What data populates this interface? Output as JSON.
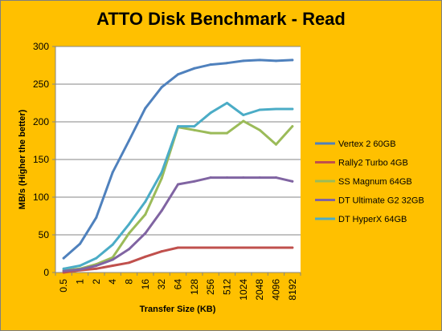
{
  "chart_data": {
    "type": "line",
    "title": "ATTO Disk Benchmark - Read",
    "xlabel": "Transfer Size (KB)",
    "ylabel": "MB/s (Higher the better)",
    "ylim": [
      0,
      300
    ],
    "yticks": [
      0,
      50,
      100,
      150,
      200,
      250,
      300
    ],
    "grid": true,
    "legend": "right",
    "categories": [
      "0.5",
      "1",
      "2",
      "4",
      "8",
      "16",
      "32",
      "64",
      "128",
      "256",
      "512",
      "1024",
      "2048",
      "4096",
      "8192"
    ],
    "series": [
      {
        "name": "Vertex 2 60GB",
        "color": "#4F81BD",
        "values": [
          19,
          38,
          73,
          133,
          175,
          218,
          246,
          263,
          271,
          276,
          278,
          281,
          282,
          281,
          282
        ]
      },
      {
        "name": "Rally2 Turbo 4GB",
        "color": "#C0504D",
        "values": [
          0,
          3,
          5,
          9,
          13,
          21,
          28,
          33,
          33,
          33,
          33,
          33,
          33,
          33,
          33
        ]
      },
      {
        "name": "SS Magnum  64GB",
        "color": "#9BBB59",
        "values": [
          3,
          5,
          11,
          20,
          52,
          77,
          125,
          193,
          189,
          185,
          185,
          201,
          189,
          170,
          194
        ]
      },
      {
        "name": "DT Ultimate  G2 32GB",
        "color": "#8064A2",
        "values": [
          2,
          4,
          9,
          17,
          31,
          52,
          82,
          117,
          121,
          126,
          126,
          126,
          126,
          126,
          121
        ]
      },
      {
        "name": "DT HyperX 64GB",
        "color": "#4BACC6",
        "values": [
          5,
          9,
          19,
          37,
          64,
          94,
          133,
          194,
          194,
          212,
          225,
          209,
          216,
          217,
          217
        ]
      }
    ]
  }
}
